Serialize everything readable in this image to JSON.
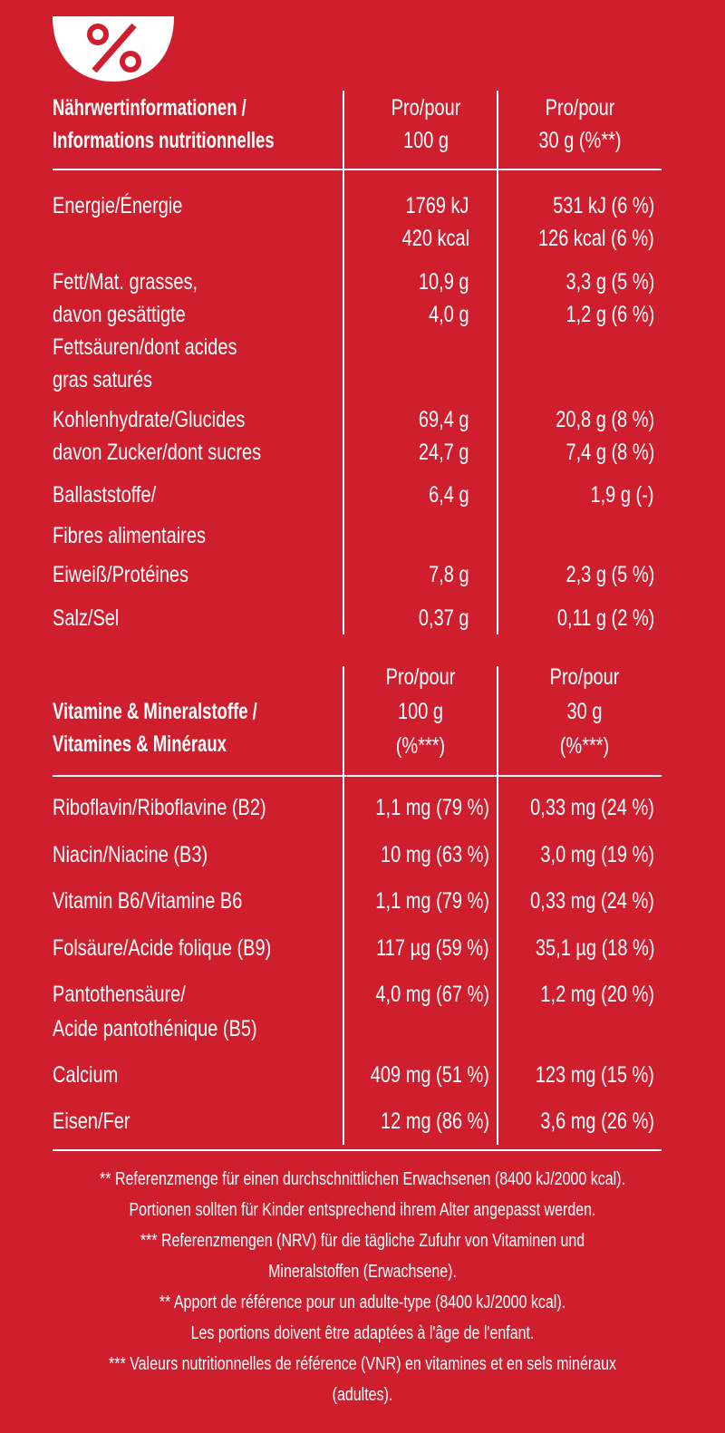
{
  "nutrition": {
    "title": [
      "Nährwertinformationen /",
      "Informations nutritionnelles"
    ],
    "col1": [
      "Pro/pour",
      "100 g"
    ],
    "col2": [
      "Pro/pour",
      "30 g (%**)"
    ],
    "rows": [
      {
        "label": [
          "Energie/Énergie"
        ],
        "per100": [
          "1769 kJ",
          "420 kcal"
        ],
        "per30": [
          "531 kJ (6 %)",
          "126 kcal (6 %)"
        ]
      },
      {
        "label": [
          "Fett/Mat. grasses,",
          "davon gesättigte",
          "Fettsäuren/dont acides",
          "gras saturés"
        ],
        "per100": [
          "10,9 g",
          "4,0 g"
        ],
        "per30": [
          "3,3 g (5 %)",
          "1,2 g (6 %)"
        ]
      },
      {
        "label": [
          "Kohlenhydrate/Glucides",
          "davon Zucker/dont sucres"
        ],
        "per100": [
          "69,4 g",
          "24,7 g"
        ],
        "per30": [
          "20,8 g (8 %)",
          "7,4 g (8 %)"
        ]
      },
      {
        "label": [
          "Ballaststoffe/",
          "Fibres alimentaires"
        ],
        "per100": [
          "6,4 g"
        ],
        "per30": [
          "1,9 g (-)"
        ]
      },
      {
        "label": [
          "Eiweiß/Protéines"
        ],
        "per100": [
          "7,8 g"
        ],
        "per30": [
          "2,3 g (5 %)"
        ]
      },
      {
        "label": [
          "Salz/Sel"
        ],
        "per100": [
          "0,37 g"
        ],
        "per30": [
          "0,11 g (2 %)"
        ]
      }
    ]
  },
  "vitamins": {
    "title": [
      "Vitamine & Mineralstoffe /",
      "Vitamines & Minéraux"
    ],
    "col1": [
      "Pro/pour",
      "100 g",
      "(%***)"
    ],
    "col2": [
      "Pro/pour",
      "30 g",
      "(%***)"
    ],
    "rows": [
      {
        "label": [
          "Riboflavin/Riboflavine (B2)"
        ],
        "per100": [
          "1,1 mg (79 %)"
        ],
        "per30": [
          "0,33 mg (24 %)"
        ]
      },
      {
        "label": [
          "Niacin/Niacine (B3)"
        ],
        "per100": [
          "10 mg (63 %)"
        ],
        "per30": [
          "3,0 mg (19 %)"
        ]
      },
      {
        "label": [
          "Vitamin B6/Vitamine B6"
        ],
        "per100": [
          "1,1 mg (79 %)"
        ],
        "per30": [
          "0,33 mg (24 %)"
        ]
      },
      {
        "label": [
          "Folsäure/Acide folique (B9)"
        ],
        "per100": [
          "117 µg (59 %)"
        ],
        "per30": [
          "35,1 µg (18 %)"
        ]
      },
      {
        "label": [
          "Pantothensäure/",
          "Acide pantothénique (B5)"
        ],
        "per100": [
          "4,0 mg (67 %)"
        ],
        "per30": [
          "1,2 mg (20 %)"
        ]
      },
      {
        "label": [
          "Calcium"
        ],
        "per100": [
          "409 mg (51 %)"
        ],
        "per30": [
          "123 mg (15 %)"
        ]
      },
      {
        "label": [
          "Eisen/Fer"
        ],
        "per100": [
          "12 mg (86 %)"
        ],
        "per30": [
          "3,6 mg (26 %)"
        ]
      }
    ]
  },
  "footnotes": [
    "** Referenzmenge für einen durchschnittlichen Erwachsenen (8400 kJ/2000 kcal).",
    "Portionen sollten für Kinder entsprechend ihrem Alter angepasst werden.",
    "*** Referenzmengen (NRV) für die tägliche Zufuhr von Vitaminen und",
    "Mineralstoffen (Erwachsene).",
    "** Apport de référence pour un adulte-type (8400 kJ/2000 kcal).",
    "Les portions doivent être adaptées à l'âge de l'enfant.",
    "*** Valeurs nutritionnelles de référence (VNR) en vitamines et en sels minéraux",
    "(adultes)."
  ]
}
